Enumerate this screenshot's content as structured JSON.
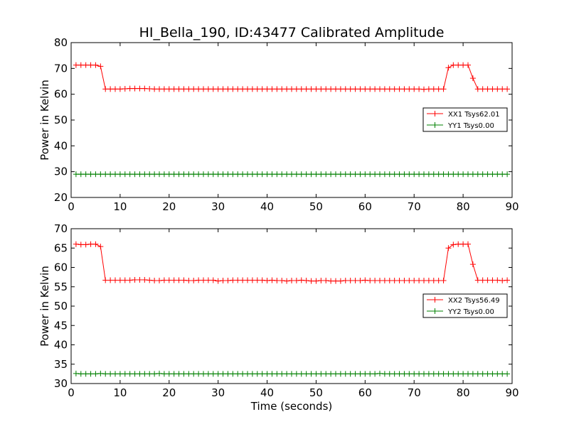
{
  "chart_data": {
    "type": "line",
    "title": "HI_Bella_190, ID:43477 Calibrated Amplitude",
    "xlabel": "Time (seconds)",
    "colors": {
      "xx": "#ff0000",
      "yy": "#008000"
    },
    "panels": [
      {
        "ylabel": "Power in Kelvin",
        "xlim": [
          0,
          90
        ],
        "ylim": [
          20,
          80
        ],
        "xticks": [
          0,
          10,
          20,
          30,
          40,
          50,
          60,
          70,
          80,
          90
        ],
        "yticks": [
          20,
          30,
          40,
          50,
          60,
          70,
          80
        ],
        "legend_position": "center-right",
        "series": [
          {
            "name": "XX1 Tsys62.01",
            "color": "#ff0000",
            "x": [
              1,
              2,
              3,
              4,
              5,
              6,
              7,
              8,
              9,
              10,
              11,
              12,
              13,
              14,
              15,
              16,
              17,
              18,
              19,
              20,
              21,
              22,
              23,
              24,
              25,
              26,
              27,
              28,
              29,
              30,
              31,
              32,
              33,
              34,
              35,
              36,
              37,
              38,
              39,
              40,
              41,
              42,
              43,
              44,
              45,
              46,
              47,
              48,
              49,
              50,
              51,
              52,
              53,
              54,
              55,
              56,
              57,
              58,
              59,
              60,
              61,
              62,
              63,
              64,
              65,
              66,
              67,
              68,
              69,
              70,
              71,
              72,
              73,
              74,
              75,
              76,
              77,
              78,
              79,
              80,
              81,
              82,
              83,
              84,
              85,
              86,
              87,
              88,
              89
            ],
            "y": [
              71.3,
              71.3,
              71.3,
              71.3,
              71.3,
              70.8,
              62.0,
              62.0,
              62.0,
              62.0,
              62.1,
              62.2,
              62.2,
              62.2,
              62.2,
              62.1,
              62.0,
              62.0,
              62.0,
              62.0,
              62.0,
              62.0,
              62.0,
              62.0,
              62.0,
              62.0,
              62.0,
              62.0,
              62.0,
              62.0,
              62.0,
              62.0,
              62.0,
              62.0,
              62.0,
              62.0,
              62.0,
              62.0,
              62.0,
              62.0,
              62.0,
              62.0,
              62.0,
              62.0,
              62.0,
              62.0,
              62.0,
              62.0,
              62.0,
              62.0,
              62.0,
              62.0,
              62.0,
              62.0,
              62.0,
              62.0,
              62.0,
              62.0,
              62.0,
              62.0,
              62.0,
              62.0,
              62.0,
              62.0,
              62.0,
              62.0,
              62.0,
              62.0,
              62.0,
              62.0,
              62.0,
              61.9,
              62.0,
              62.0,
              62.0,
              62.0,
              70.3,
              71.3,
              71.3,
              71.3,
              71.3,
              66.2,
              62.0,
              62.0,
              62.0,
              62.0,
              62.0,
              62.0,
              62.0
            ]
          },
          {
            "name": "YY1 Tsys0.00",
            "color": "#008000",
            "x": [
              1,
              2,
              3,
              4,
              5,
              6,
              7,
              8,
              9,
              10,
              11,
              12,
              13,
              14,
              15,
              16,
              17,
              18,
              19,
              20,
              21,
              22,
              23,
              24,
              25,
              26,
              27,
              28,
              29,
              30,
              31,
              32,
              33,
              34,
              35,
              36,
              37,
              38,
              39,
              40,
              41,
              42,
              43,
              44,
              45,
              46,
              47,
              48,
              49,
              50,
              51,
              52,
              53,
              54,
              55,
              56,
              57,
              58,
              59,
              60,
              61,
              62,
              63,
              64,
              65,
              66,
              67,
              68,
              69,
              70,
              71,
              72,
              73,
              74,
              75,
              76,
              77,
              78,
              79,
              80,
              81,
              82,
              83,
              84,
              85,
              86,
              87,
              88,
              89
            ],
            "y": [
              29.0,
              29.0,
              29.0,
              29.0,
              29.0,
              29.0,
              29.0,
              29.0,
              29.0,
              29.0,
              29.0,
              29.0,
              29.0,
              29.0,
              29.0,
              29.0,
              29.0,
              29.0,
              29.0,
              29.0,
              29.0,
              29.0,
              29.0,
              29.0,
              29.0,
              29.0,
              29.0,
              29.0,
              29.0,
              29.0,
              29.0,
              29.0,
              29.0,
              29.0,
              29.0,
              29.0,
              29.0,
              29.0,
              29.0,
              29.0,
              29.0,
              29.0,
              29.0,
              29.0,
              29.0,
              29.0,
              29.0,
              29.0,
              29.0,
              29.0,
              29.0,
              29.0,
              29.0,
              29.0,
              29.0,
              29.0,
              29.0,
              29.0,
              29.0,
              29.0,
              29.0,
              29.0,
              29.0,
              29.0,
              29.0,
              29.0,
              29.0,
              29.0,
              29.0,
              29.0,
              29.0,
              29.0,
              29.0,
              29.0,
              29.0,
              29.0,
              29.0,
              29.0,
              29.0,
              29.0,
              29.0,
              29.0,
              29.0,
              29.0,
              29.0,
              29.0,
              29.0,
              29.0,
              29.0
            ]
          }
        ]
      },
      {
        "ylabel": "Power in Kelvin",
        "xlim": [
          0,
          90
        ],
        "ylim": [
          30,
          70
        ],
        "xticks": [
          0,
          10,
          20,
          30,
          40,
          50,
          60,
          70,
          80,
          90
        ],
        "yticks": [
          30,
          35,
          40,
          45,
          50,
          55,
          60,
          65,
          70
        ],
        "legend_position": "center-right",
        "series": [
          {
            "name": "XX2 Tsys56.49",
            "color": "#ff0000",
            "x": [
              1,
              2,
              3,
              4,
              5,
              6,
              7,
              8,
              9,
              10,
              11,
              12,
              13,
              14,
              15,
              16,
              17,
              18,
              19,
              20,
              21,
              22,
              23,
              24,
              25,
              26,
              27,
              28,
              29,
              30,
              31,
              32,
              33,
              34,
              35,
              36,
              37,
              38,
              39,
              40,
              41,
              42,
              43,
              44,
              45,
              46,
              47,
              48,
              49,
              50,
              51,
              52,
              53,
              54,
              55,
              56,
              57,
              58,
              59,
              60,
              61,
              62,
              63,
              64,
              65,
              66,
              67,
              68,
              69,
              70,
              71,
              72,
              73,
              74,
              75,
              76,
              77,
              78,
              79,
              80,
              81,
              82,
              83,
              84,
              85,
              86,
              87,
              88,
              89
            ],
            "y": [
              66.0,
              65.9,
              65.9,
              66.0,
              66.0,
              65.4,
              56.7,
              56.7,
              56.7,
              56.7,
              56.7,
              56.7,
              56.8,
              56.8,
              56.8,
              56.7,
              56.6,
              56.6,
              56.7,
              56.7,
              56.7,
              56.7,
              56.7,
              56.6,
              56.6,
              56.7,
              56.7,
              56.7,
              56.7,
              56.5,
              56.6,
              56.6,
              56.7,
              56.7,
              56.7,
              56.7,
              56.7,
              56.7,
              56.7,
              56.6,
              56.7,
              56.6,
              56.6,
              56.5,
              56.6,
              56.6,
              56.7,
              56.6,
              56.5,
              56.5,
              56.6,
              56.6,
              56.5,
              56.5,
              56.5,
              56.6,
              56.6,
              56.6,
              56.6,
              56.7,
              56.6,
              56.6,
              56.6,
              56.6,
              56.6,
              56.6,
              56.6,
              56.6,
              56.6,
              56.6,
              56.6,
              56.6,
              56.6,
              56.6,
              56.6,
              56.6,
              65.0,
              65.9,
              66.0,
              66.0,
              66.0,
              60.8,
              56.7,
              56.7,
              56.7,
              56.7,
              56.7,
              56.6,
              56.7
            ]
          },
          {
            "name": "YY2 Tsys0.00",
            "color": "#008000",
            "x": [
              1,
              2,
              3,
              4,
              5,
              6,
              7,
              8,
              9,
              10,
              11,
              12,
              13,
              14,
              15,
              16,
              17,
              18,
              19,
              20,
              21,
              22,
              23,
              24,
              25,
              26,
              27,
              28,
              29,
              30,
              31,
              32,
              33,
              34,
              35,
              36,
              37,
              38,
              39,
              40,
              41,
              42,
              43,
              44,
              45,
              46,
              47,
              48,
              49,
              50,
              51,
              52,
              53,
              54,
              55,
              56,
              57,
              58,
              59,
              60,
              61,
              62,
              63,
              64,
              65,
              66,
              67,
              68,
              69,
              70,
              71,
              72,
              73,
              74,
              75,
              76,
              77,
              78,
              79,
              80,
              81,
              82,
              83,
              84,
              85,
              86,
              87,
              88,
              89
            ],
            "y": [
              32.6,
              32.5,
              32.5,
              32.5,
              32.5,
              32.6,
              32.5,
              32.5,
              32.5,
              32.5,
              32.5,
              32.5,
              32.5,
              32.5,
              32.5,
              32.5,
              32.5,
              32.6,
              32.5,
              32.5,
              32.5,
              32.5,
              32.5,
              32.5,
              32.5,
              32.5,
              32.5,
              32.5,
              32.5,
              32.5,
              32.5,
              32.5,
              32.5,
              32.5,
              32.5,
              32.5,
              32.5,
              32.5,
              32.5,
              32.5,
              32.5,
              32.5,
              32.5,
              32.5,
              32.5,
              32.5,
              32.5,
              32.5,
              32.5,
              32.5,
              32.5,
              32.5,
              32.5,
              32.5,
              32.5,
              32.5,
              32.5,
              32.5,
              32.5,
              32.5,
              32.5,
              32.5,
              32.6,
              32.5,
              32.5,
              32.5,
              32.5,
              32.5,
              32.5,
              32.5,
              32.5,
              32.5,
              32.5,
              32.5,
              32.5,
              32.5,
              32.5,
              32.5,
              32.5,
              32.5,
              32.5,
              32.5,
              32.5,
              32.5,
              32.5,
              32.5,
              32.5,
              32.5,
              32.5
            ]
          }
        ]
      }
    ]
  }
}
